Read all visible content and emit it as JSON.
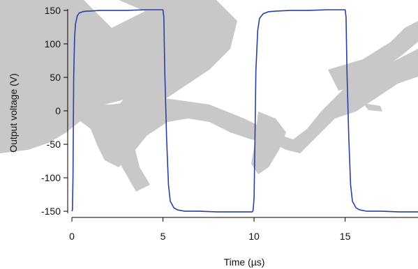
{
  "chart_data": {
    "type": "line",
    "xlabel": "Time (µs)",
    "ylabel": "Output voltage (V)",
    "xlim": [
      0,
      19
    ],
    "ylim": [
      -153,
      152
    ],
    "x_ticks": [
      0,
      5,
      10,
      15
    ],
    "y_ticks": [
      -150,
      -100,
      -50,
      0,
      50,
      100,
      150
    ],
    "x_tick_labels": [
      "0",
      "5",
      "10",
      "15"
    ],
    "y_tick_labels": [
      "-150",
      "-100",
      "-50",
      "0",
      "50",
      "100",
      "150"
    ],
    "grid": false,
    "legend": "none",
    "line_color": "#2a3fa5",
    "watermark_color": "#c8c8c8",
    "series": [
      {
        "x": [
          0.0,
          0.03,
          0.06,
          0.1,
          0.15,
          0.2,
          0.3,
          0.4,
          0.6,
          0.8,
          1.0,
          1.5,
          2.0,
          3.0,
          4.0,
          4.9,
          5.0,
          5.05,
          5.1,
          5.2,
          5.3,
          5.4,
          5.6,
          5.8,
          6.2,
          7.0,
          8.0,
          9.0,
          9.9,
          9.95,
          10.0,
          10.05,
          10.1,
          10.2,
          10.3,
          10.5,
          10.8,
          11.2,
          12.0,
          13.0,
          14.0,
          14.9,
          15.0,
          15.05,
          15.1,
          15.2,
          15.3,
          15.4,
          15.6,
          15.8,
          16.2,
          17.0,
          18.0,
          19.0
        ],
        "y": [
          -150,
          -148,
          -100,
          50,
          110,
          130,
          142,
          146,
          148,
          149,
          149,
          150,
          150,
          150,
          151,
          151,
          151,
          140,
          60,
          -40,
          -110,
          -135,
          -145,
          -148,
          -150,
          -150,
          -151,
          -151,
          -151,
          -149,
          -130,
          -40,
          60,
          120,
          138,
          145,
          148,
          149,
          150,
          150,
          151,
          151,
          151,
          140,
          60,
          -40,
          -110,
          -135,
          -145,
          -148,
          -150,
          -150,
          -151,
          -151
        ]
      }
    ]
  }
}
